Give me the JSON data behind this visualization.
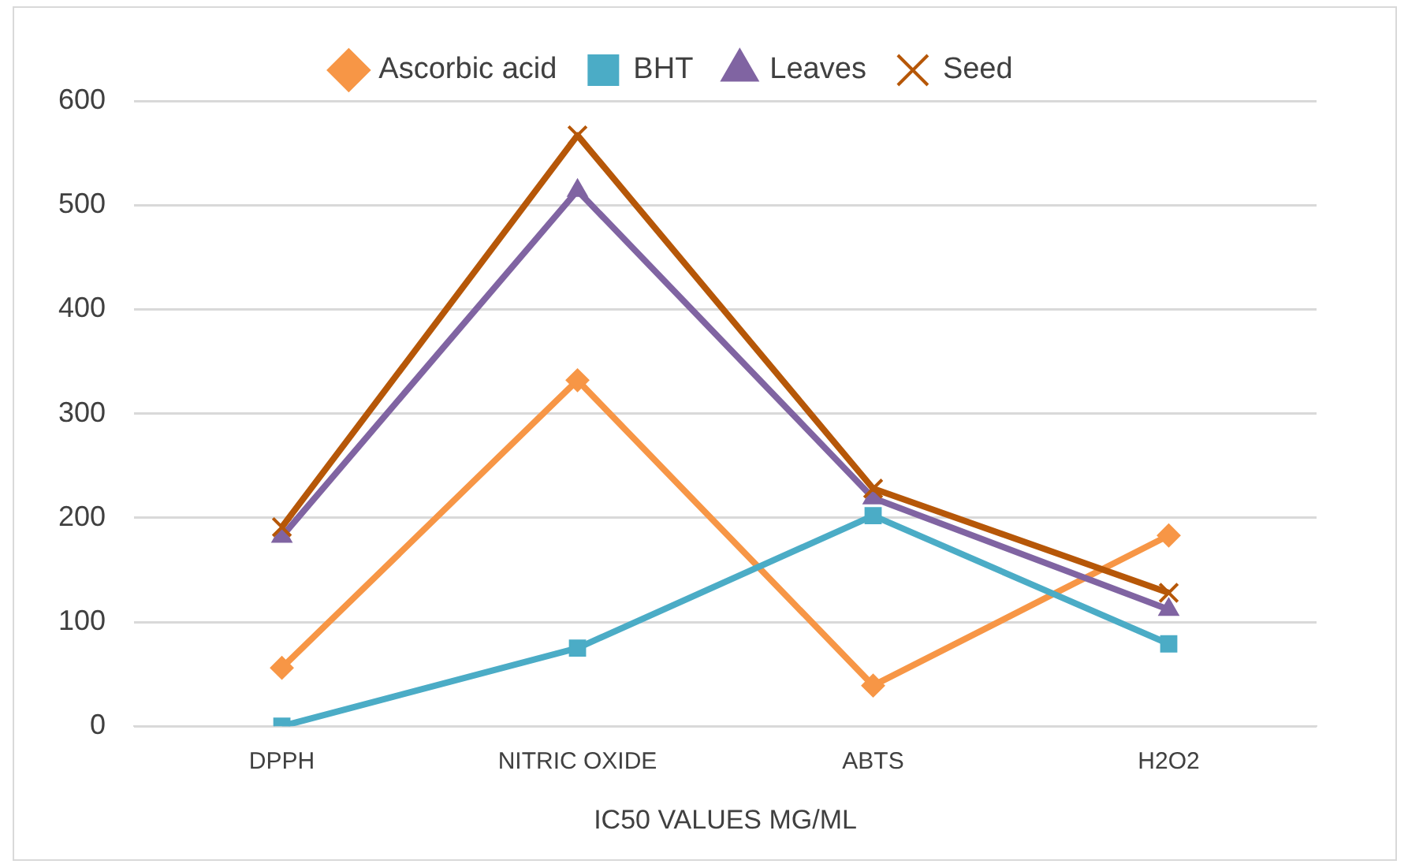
{
  "chart_data": {
    "type": "line",
    "xlabel": "IC50 VALUES MG/ML",
    "categories": [
      "DPPH",
      "NITRIC OXIDE",
      "ABTS",
      "H2O2"
    ],
    "series": [
      {
        "name": "Ascorbic acid",
        "color": "#f79646",
        "marker": "diamond",
        "values": [
          56,
          332,
          39,
          183
        ]
      },
      {
        "name": "BHT",
        "color": "#4bacc6",
        "marker": "square",
        "values": [
          0,
          75,
          202,
          79
        ]
      },
      {
        "name": "Leaves",
        "color": "#8064a2",
        "marker": "triangle",
        "values": [
          182,
          514,
          219,
          112
        ]
      },
      {
        "name": "Seed",
        "color": "#b65708",
        "marker": "cross",
        "values": [
          191,
          567,
          228,
          128
        ]
      }
    ],
    "ylim": [
      0,
      600
    ],
    "yticks": [
      0,
      100,
      200,
      300,
      400,
      500,
      600
    ],
    "grid": "y",
    "legend": "top",
    "line_style": "solid"
  }
}
